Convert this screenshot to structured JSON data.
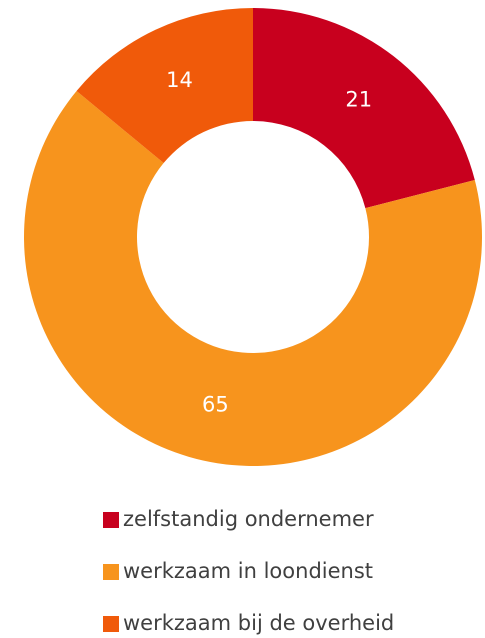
{
  "chart_data": {
    "type": "donut",
    "categories": [
      "zelfstandig ondernemer",
      "werkzaam in loondienst",
      "werkzaam bij de overheid"
    ],
    "values": [
      21,
      65,
      14
    ],
    "colors": [
      "#c8001e",
      "#f7941d",
      "#f05a0a"
    ],
    "legend": "bottom"
  }
}
